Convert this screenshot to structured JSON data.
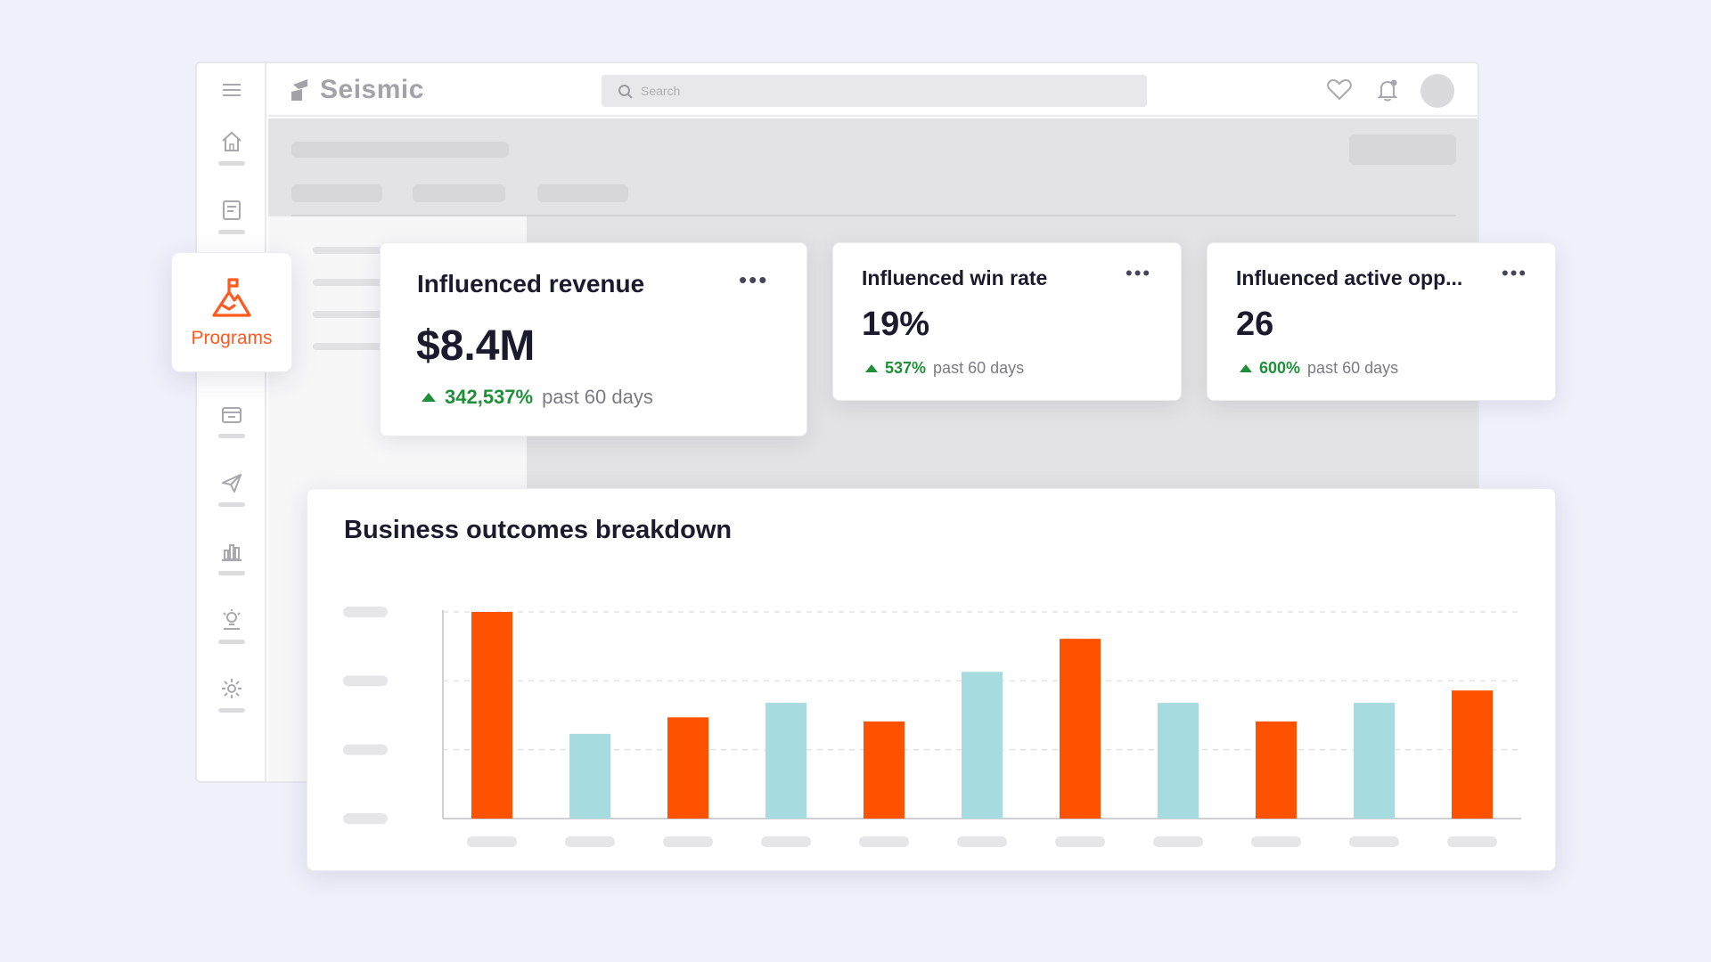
{
  "app": {
    "brand": "Seismic",
    "search_placeholder": "Search"
  },
  "rail": {
    "icons": [
      "menu-icon",
      "home-icon",
      "document-icon",
      "folder-icon",
      "send-icon",
      "bar-chart-icon",
      "lightbulb-icon",
      "gear-icon"
    ]
  },
  "programs": {
    "label": "Programs",
    "accent": "#ff5a1f"
  },
  "cards": [
    {
      "title": "Influenced revenue",
      "value": "$8.4M",
      "change": "342,537%",
      "period": "past 60 days"
    },
    {
      "title": "Influenced win rate",
      "value": "19%",
      "change": "537%",
      "period": "past 60 days"
    },
    {
      "title": "Influenced active opp...",
      "value": "26",
      "change": "600%",
      "period": "past 60 days"
    }
  ],
  "chart": {
    "title": "Business outcomes breakdown"
  },
  "chart_data": {
    "type": "bar",
    "title": "Business outcomes breakdown",
    "categories": [
      "",
      "",
      "",
      "",
      "",
      "",
      "",
      "",
      "",
      "",
      ""
    ],
    "values": [
      100,
      41,
      49,
      56,
      47,
      71,
      87,
      56,
      47,
      56,
      62
    ],
    "bar_colors": [
      "#ff5200",
      "#a6dbe0",
      "#ff5200",
      "#a6dbe0",
      "#ff5200",
      "#a6dbe0",
      "#ff5200",
      "#a6dbe0",
      "#ff5200",
      "#a6dbe0",
      "#ff5200"
    ],
    "ylim": [
      0,
      100
    ],
    "grid": true,
    "colors": {
      "orange": "#ff5200",
      "teal": "#a6dbe0"
    }
  }
}
